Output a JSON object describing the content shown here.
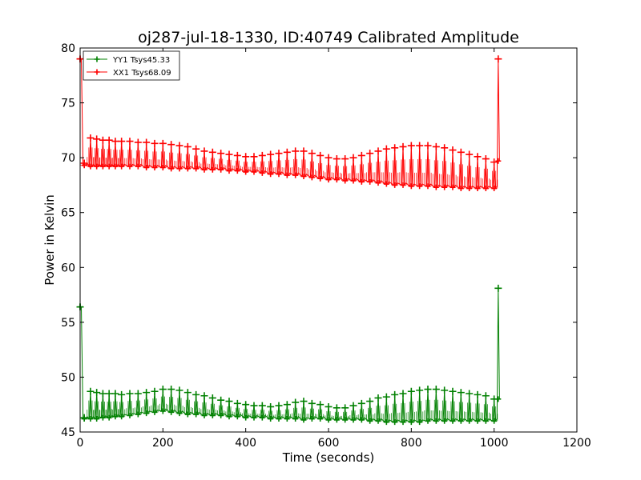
{
  "chart_data": {
    "type": "line",
    "title": "oj287-jul-18-1330, ID:40749 Calibrated Amplitude",
    "xlabel": "Time (seconds)",
    "ylabel": "Power in Kelvin",
    "xlim": [
      0,
      1200
    ],
    "ylim": [
      45,
      80
    ],
    "x_ticks": [
      0,
      200,
      400,
      600,
      800,
      1000,
      1200
    ],
    "y_ticks": [
      45,
      50,
      55,
      60,
      65,
      70,
      75,
      80
    ],
    "grid": false,
    "legend_position": "top-left",
    "colors": {
      "YY1": "#008000",
      "XX1": "#ff0000"
    },
    "series": [
      {
        "name": "YY1 Tsys45.33",
        "color": "#008000",
        "x": [
          0,
          10,
          25,
          40,
          55,
          70,
          85,
          100,
          120,
          140,
          160,
          180,
          200,
          220,
          240,
          260,
          280,
          300,
          320,
          340,
          360,
          380,
          400,
          420,
          440,
          460,
          480,
          500,
          520,
          540,
          560,
          580,
          600,
          620,
          640,
          660,
          680,
          700,
          720,
          740,
          760,
          780,
          800,
          820,
          840,
          860,
          880,
          900,
          920,
          940,
          960,
          980,
          1000,
          1010
        ],
        "high": [
          56.4,
          46.3,
          48.7,
          48.6,
          48.5,
          48.5,
          48.5,
          48.4,
          48.5,
          48.5,
          48.6,
          48.7,
          48.9,
          48.9,
          48.8,
          48.6,
          48.4,
          48.3,
          48.1,
          47.9,
          47.8,
          47.6,
          47.5,
          47.4,
          47.4,
          47.3,
          47.4,
          47.5,
          47.7,
          47.8,
          47.6,
          47.5,
          47.3,
          47.2,
          47.2,
          47.4,
          47.6,
          47.8,
          48.1,
          48.2,
          48.4,
          48.5,
          48.7,
          48.8,
          48.9,
          48.9,
          48.8,
          48.7,
          48.6,
          48.5,
          48.4,
          48.3,
          48.0,
          58.1
        ],
        "low": [
          56.4,
          46.2,
          46.2,
          46.2,
          46.3,
          46.3,
          46.4,
          46.4,
          46.5,
          46.6,
          46.7,
          46.8,
          46.9,
          46.8,
          46.7,
          46.6,
          46.6,
          46.5,
          46.5,
          46.5,
          46.4,
          46.4,
          46.3,
          46.3,
          46.3,
          46.2,
          46.2,
          46.2,
          46.2,
          46.1,
          46.2,
          46.2,
          46.1,
          46.1,
          46.1,
          46.1,
          46.1,
          46.0,
          46.0,
          45.9,
          45.9,
          45.9,
          45.9,
          45.9,
          46.0,
          46.0,
          46.0,
          46.0,
          46.0,
          46.0,
          46.0,
          46.0,
          46.0,
          48.0
        ]
      },
      {
        "name": "XX1 Tsys68.09",
        "color": "#ff0000",
        "x": [
          0,
          10,
          25,
          40,
          55,
          70,
          85,
          100,
          120,
          140,
          160,
          180,
          200,
          220,
          240,
          260,
          280,
          300,
          320,
          340,
          360,
          380,
          400,
          420,
          440,
          460,
          480,
          500,
          520,
          540,
          560,
          580,
          600,
          620,
          640,
          660,
          680,
          700,
          720,
          740,
          760,
          780,
          800,
          820,
          840,
          860,
          880,
          900,
          920,
          940,
          960,
          980,
          1000,
          1010
        ],
        "high": [
          79.0,
          69.5,
          71.8,
          71.7,
          71.6,
          71.6,
          71.5,
          71.5,
          71.5,
          71.4,
          71.4,
          71.3,
          71.3,
          71.2,
          71.1,
          71.0,
          70.8,
          70.6,
          70.5,
          70.4,
          70.3,
          70.2,
          70.1,
          70.1,
          70.2,
          70.3,
          70.4,
          70.5,
          70.6,
          70.6,
          70.4,
          70.2,
          70.0,
          69.9,
          69.9,
          70.0,
          70.2,
          70.4,
          70.6,
          70.8,
          70.9,
          71.0,
          71.1,
          71.1,
          71.1,
          71.0,
          70.9,
          70.7,
          70.5,
          70.3,
          70.1,
          69.9,
          69.6,
          79.0
        ],
        "low": [
          79.0,
          69.3,
          69.2,
          69.2,
          69.2,
          69.2,
          69.2,
          69.2,
          69.2,
          69.2,
          69.1,
          69.1,
          69.1,
          69.0,
          69.0,
          69.0,
          69.0,
          68.9,
          68.9,
          68.9,
          68.8,
          68.8,
          68.7,
          68.7,
          68.6,
          68.5,
          68.5,
          68.4,
          68.4,
          68.3,
          68.2,
          68.1,
          68.0,
          68.0,
          67.9,
          67.9,
          67.8,
          67.8,
          67.7,
          67.6,
          67.5,
          67.5,
          67.4,
          67.4,
          67.4,
          67.3,
          67.3,
          67.3,
          67.2,
          67.2,
          67.2,
          67.2,
          67.2,
          69.7
        ]
      }
    ]
  }
}
